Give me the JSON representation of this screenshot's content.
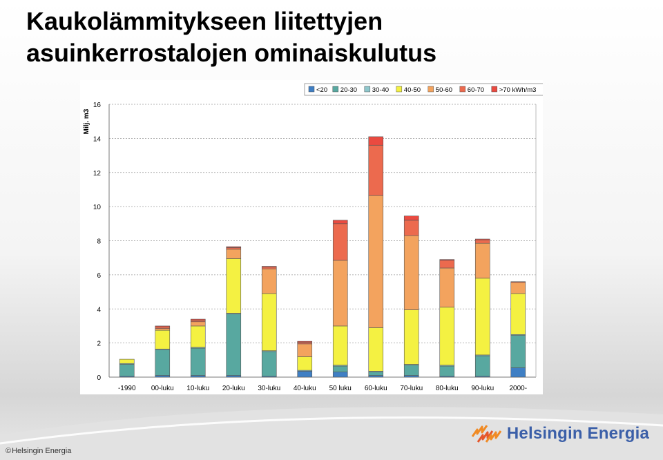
{
  "slide": {
    "title_line1": "Kaukolämmitykseen liitettyjen",
    "title_line2": "asuinkerrostalojen ominaiskulutus"
  },
  "footer": {
    "copyright": "Helsingin Energia",
    "brand": "Helsingin Energia"
  },
  "chart_data": {
    "type": "bar",
    "stacked": true,
    "title": "",
    "xlabel": "",
    "ylabel": "Milj. m3",
    "ylim": [
      0,
      16
    ],
    "yticks": [
      0,
      2,
      4,
      6,
      8,
      10,
      12,
      14,
      16
    ],
    "grid": true,
    "legend_position": "top-right",
    "legend_unit": "kWh/m3",
    "categories": [
      "-1990",
      "00-luku",
      "10-luku",
      "20-luku",
      "30-luku",
      "40-luku",
      "50 luku",
      "60-luku",
      "70-luku",
      "80-luku",
      "90-luku",
      "2000-"
    ],
    "series": [
      {
        "name": "<20",
        "color": "#3f7fc4",
        "values": [
          0.05,
          0.1,
          0.1,
          0.1,
          0.05,
          0.35,
          0.3,
          0.1,
          0.1,
          0.05,
          0.05,
          0.55
        ]
      },
      {
        "name": "20-30",
        "color": "#58a8a0",
        "values": [
          0.7,
          1.5,
          1.6,
          3.6,
          1.45,
          0.0,
          0.35,
          0.2,
          0.6,
          0.6,
          1.2,
          1.9
        ]
      },
      {
        "name": "30-40",
        "color": "#8ec7cc",
        "values": [
          0.05,
          0.05,
          0.05,
          0.05,
          0.05,
          0.05,
          0.05,
          0.05,
          0.05,
          0.05,
          0.05,
          0.05
        ]
      },
      {
        "name": "40-50",
        "color": "#f4f142",
        "values": [
          0.25,
          1.1,
          1.25,
          3.2,
          3.35,
          0.8,
          2.3,
          2.55,
          3.2,
          3.4,
          4.5,
          2.4
        ]
      },
      {
        "name": "50-60",
        "color": "#f3a35e",
        "values": [
          0.0,
          0.1,
          0.25,
          0.55,
          1.45,
          0.75,
          3.85,
          7.75,
          4.35,
          2.3,
          2.05,
          0.65
        ]
      },
      {
        "name": "60-70",
        "color": "#ec6a4e",
        "values": [
          0.0,
          0.1,
          0.1,
          0.1,
          0.1,
          0.1,
          2.15,
          2.95,
          0.9,
          0.45,
          0.2,
          0.05
        ]
      },
      {
        "name": ">70",
        "color": "#ea4a40",
        "values": [
          0.0,
          0.05,
          0.05,
          0.05,
          0.05,
          0.05,
          0.2,
          0.5,
          0.25,
          0.05,
          0.05,
          0.0
        ]
      }
    ]
  }
}
